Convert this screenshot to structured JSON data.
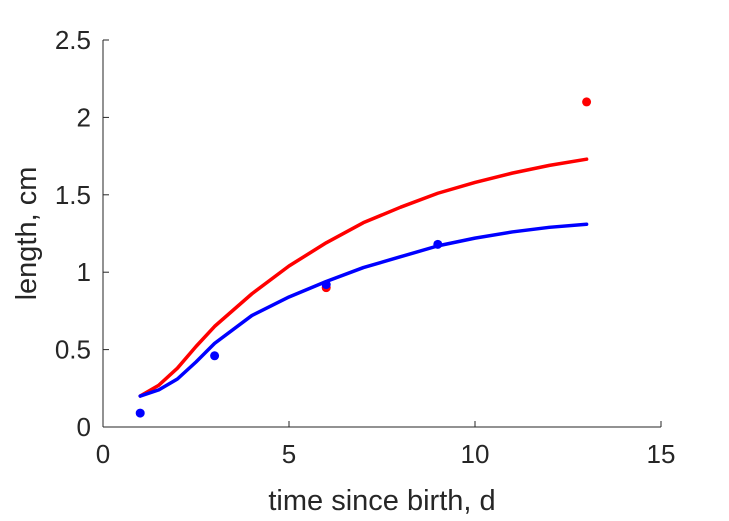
{
  "chart_data": {
    "type": "line",
    "title": "",
    "xlabel": "time since birth, d",
    "ylabel": "length, cm",
    "xlim": [
      0,
      15
    ],
    "ylim": [
      0,
      2.5
    ],
    "xticks": [
      "0",
      "5",
      "10",
      "15"
    ],
    "yticks": [
      "0",
      "0.5",
      "1",
      "1.5",
      "2",
      "2.5"
    ],
    "grid": false,
    "legend": "none",
    "series": [
      {
        "kind": "line",
        "color": "#ff0000",
        "x": [
          1,
          1.5,
          2,
          2.5,
          3,
          4,
          5,
          6,
          7,
          8,
          9,
          10,
          11,
          12,
          13
        ],
        "y": [
          0.2,
          0.27,
          0.38,
          0.52,
          0.65,
          0.86,
          1.04,
          1.19,
          1.32,
          1.42,
          1.51,
          1.58,
          1.64,
          1.69,
          1.73
        ]
      },
      {
        "kind": "line",
        "color": "#0000ff",
        "x": [
          1,
          1.5,
          2,
          2.5,
          3,
          4,
          5,
          6,
          7,
          8,
          9,
          10,
          11,
          12,
          13
        ],
        "y": [
          0.2,
          0.24,
          0.31,
          0.42,
          0.54,
          0.72,
          0.84,
          0.94,
          1.03,
          1.1,
          1.17,
          1.22,
          1.26,
          1.29,
          1.31
        ]
      },
      {
        "kind": "scatter",
        "color": "#ff0000",
        "x": [
          6,
          13
        ],
        "y": [
          0.9,
          2.1
        ]
      },
      {
        "kind": "scatter",
        "color": "#0000ff",
        "x": [
          1,
          3,
          6,
          9
        ],
        "y": [
          0.09,
          0.46,
          0.92,
          1.18
        ]
      }
    ]
  }
}
